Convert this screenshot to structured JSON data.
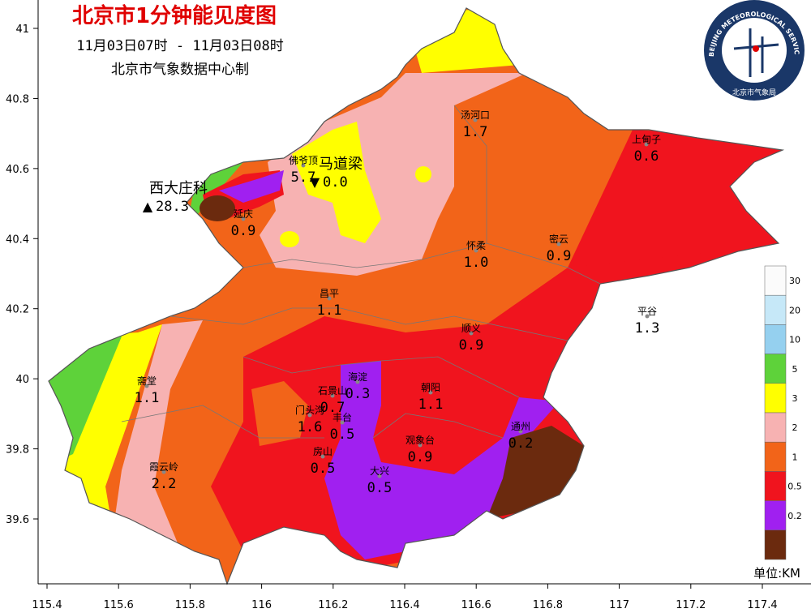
{
  "header": {
    "title": "北京市1分钟能见度图",
    "time": "11月03日07时 - 11月03日08时",
    "source": "北京市气象数据中心制"
  },
  "logo": {
    "ring_text": "BEIJING METEOROLOGICAL SERVICE",
    "org": "北京市气象局"
  },
  "axes": {
    "xticks": [
      115.4,
      115.6,
      115.8,
      116,
      116.2,
      116.4,
      116.6,
      116.8,
      117,
      117.2,
      117.4
    ],
    "yticks": [
      41,
      40.8,
      40.6,
      40.4,
      40.2,
      40,
      39.8,
      39.6
    ]
  },
  "extremes": [
    {
      "name": "西大庄科",
      "marker": "▲",
      "value": "28.3"
    },
    {
      "name": "马道梁",
      "marker": "▼",
      "value": "0.0"
    }
  ],
  "stations": [
    {
      "name": "汤河口",
      "value": "1.7"
    },
    {
      "name": "上甸子",
      "value": "0.6"
    },
    {
      "name": "佛爷顶",
      "value": "5.7"
    },
    {
      "name": "延庆",
      "value": "0.9"
    },
    {
      "name": "怀柔",
      "value": "1.0"
    },
    {
      "name": "密云",
      "value": "0.9"
    },
    {
      "name": "昌平",
      "value": "1.1"
    },
    {
      "name": "平谷",
      "value": "1.3"
    },
    {
      "name": "顺义",
      "value": "0.9"
    },
    {
      "name": "海淀",
      "value": "0.3"
    },
    {
      "name": "朝阳",
      "value": "1.1"
    },
    {
      "name": "石景山",
      "value": "0.7"
    },
    {
      "name": "门头沟",
      "value": "1.6"
    },
    {
      "name": "丰台",
      "value": "0.5"
    },
    {
      "name": "通州",
      "value": "0.2"
    },
    {
      "name": "观象台",
      "value": "0.9"
    },
    {
      "name": "斋堂",
      "value": "1.1"
    },
    {
      "name": "房山",
      "value": "0.5"
    },
    {
      "name": "大兴",
      "value": "0.5"
    },
    {
      "name": "霞云岭",
      "value": "2.2"
    }
  ],
  "legend": {
    "labels": [
      30,
      20,
      10,
      5,
      3,
      2,
      1,
      0.5,
      0.2
    ],
    "colors": [
      "#fbfbfb",
      "#c6e8f8",
      "#95d0ef",
      "#5ed23a",
      "#ffff00",
      "#f7b2b2",
      "#f26419",
      "#f0141e",
      "#a020f0",
      "#6b2a0e"
    ],
    "unit": "单位:KM"
  }
}
